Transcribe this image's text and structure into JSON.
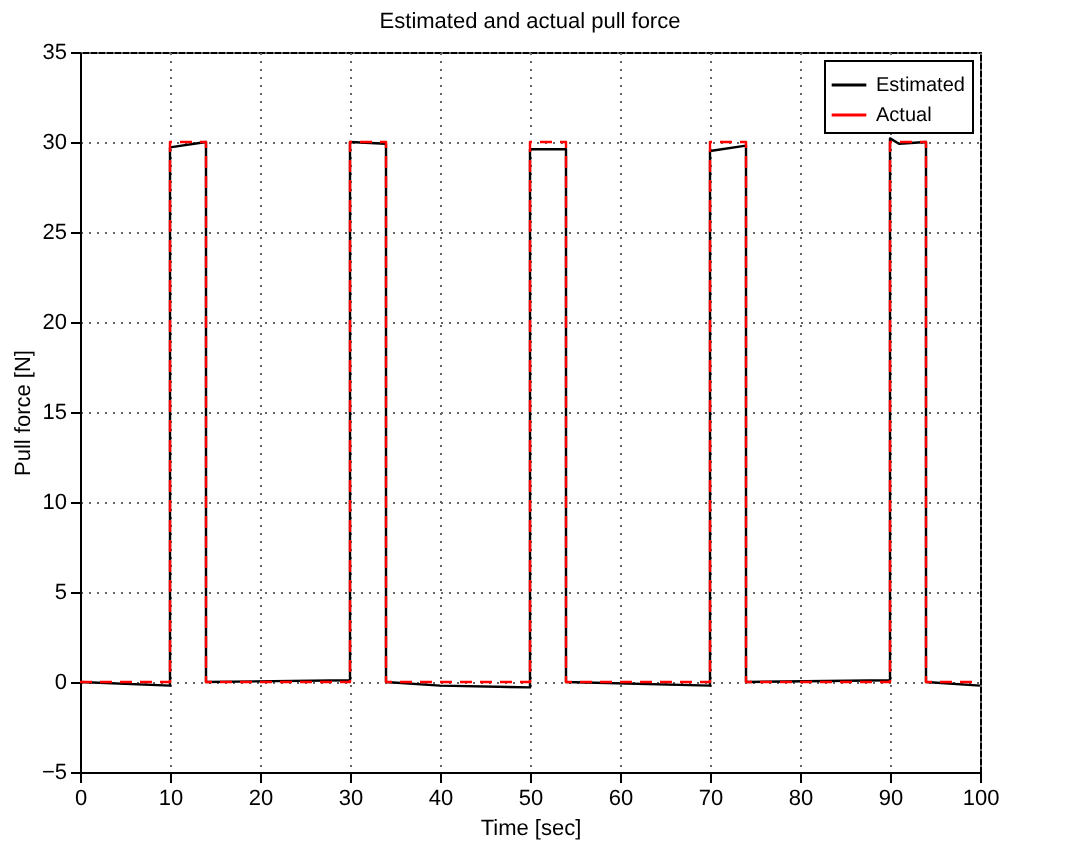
{
  "chart_data": {
    "type": "line",
    "title": "Estimated and actual pull force",
    "xlabel": "Time [sec]",
    "ylabel": "Pull force [N]",
    "xlim": [
      0,
      100
    ],
    "xticks": [
      0,
      10,
      20,
      30,
      40,
      50,
      60,
      70,
      80,
      90,
      100
    ],
    "ylim": [
      -5,
      35
    ],
    "yticks": [
      -5,
      0,
      5,
      10,
      15,
      20,
      25,
      30,
      35
    ],
    "grid": true,
    "legend": "top right",
    "marker": "none",
    "series": [
      {
        "name": "Estimated",
        "color": "#000000",
        "line_style": "solid",
        "x": [
          0,
          10,
          10,
          14,
          14,
          30,
          30,
          34,
          34,
          40,
          50,
          50,
          54,
          54,
          70,
          70,
          74,
          74,
          90,
          90,
          91,
          94,
          94,
          100
        ],
        "values": [
          0,
          -0.2,
          29.7,
          30,
          0,
          0.1,
          30,
          29.9,
          0,
          -0.2,
          -0.3,
          29.6,
          29.6,
          0,
          -0.2,
          29.5,
          29.8,
          0,
          0.1,
          30.2,
          29.9,
          30,
          0,
          -0.2
        ]
      },
      {
        "name": "Actual",
        "color": "#ff0000",
        "line_style": "dashed",
        "x": [
          0,
          10,
          10,
          14,
          14,
          30,
          30,
          34,
          34,
          50,
          50,
          54,
          54,
          70,
          70,
          74,
          74,
          90,
          90,
          94,
          94,
          100
        ],
        "values": [
          0,
          0,
          30,
          30,
          0,
          0,
          30,
          30,
          0,
          0,
          30,
          30,
          0,
          0,
          30,
          30,
          0,
          0,
          30,
          30,
          0,
          0
        ]
      }
    ]
  }
}
